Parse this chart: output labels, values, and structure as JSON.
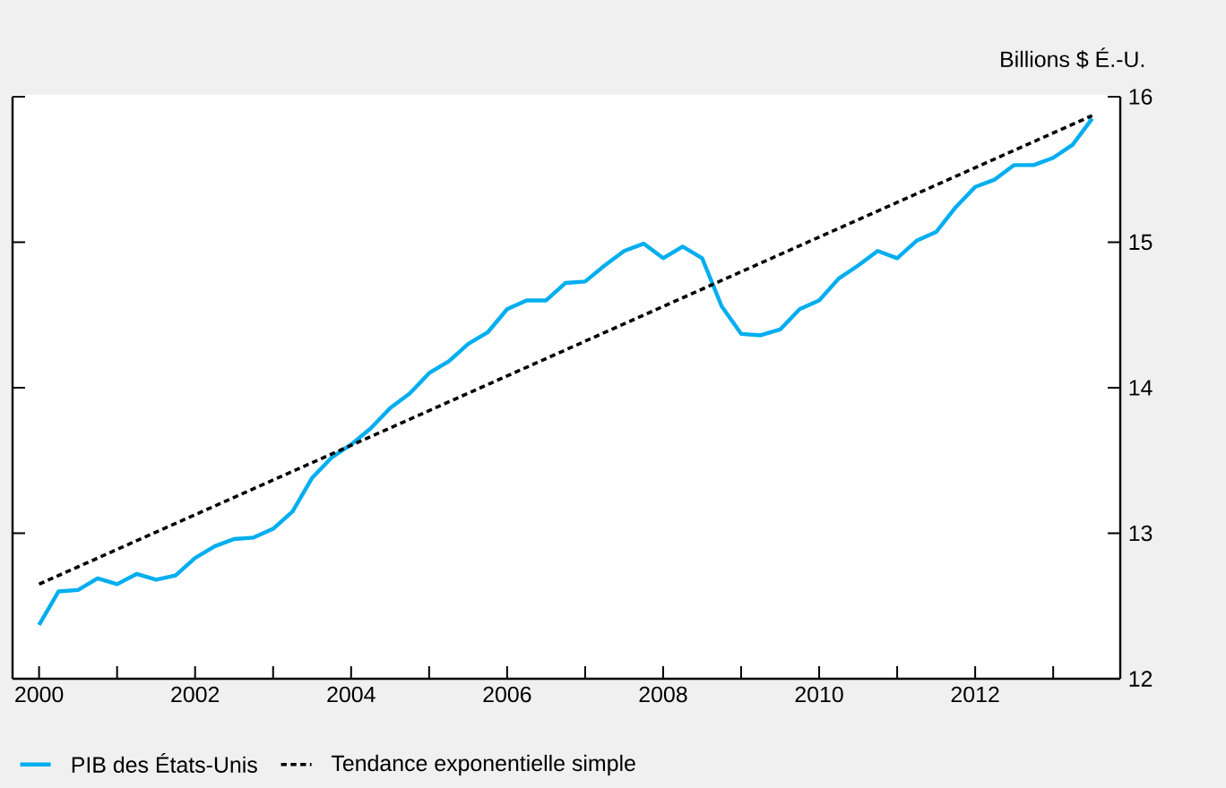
{
  "chart_data": {
    "type": "line",
    "ylabel": "Billions $ É.-U.",
    "xlim": [
      1999.66,
      2013.86
    ],
    "xticks": [
      2000,
      {
        "value": 2001,
        "label": null
      },
      2002,
      {
        "value": 2003,
        "label": null
      },
      2004,
      {
        "value": 2005,
        "label": null
      },
      2006,
      {
        "value": 2007,
        "label": null
      },
      2008,
      {
        "value": 2009,
        "label": null
      },
      2010,
      {
        "value": 2011,
        "label": null
      },
      2012,
      {
        "value": 2013,
        "label": null
      }
    ],
    "ylim": [
      12,
      16
    ],
    "yticks": [
      12,
      13,
      14,
      15,
      16
    ],
    "grid": false,
    "legend": "bottom",
    "series": [
      {
        "name": "PIB des États-Unis",
        "color": "#00aeef",
        "line_style": "solid",
        "x": [
          2000,
          2000.25,
          2000.5,
          2000.75,
          2001,
          2001.25,
          2001.5,
          2001.75,
          2002,
          2002.25,
          2002.5,
          2002.75,
          2003,
          2003.25,
          2003.5,
          2003.75,
          2004,
          2004.25,
          2004.5,
          2004.75,
          2005,
          2005.25,
          2005.5,
          2005.75,
          2006,
          2006.25,
          2006.5,
          2006.75,
          2007,
          2007.25,
          2007.5,
          2007.75,
          2008,
          2008.25,
          2008.5,
          2008.75,
          2009,
          2009.25,
          2009.5,
          2009.75,
          2010,
          2010.25,
          2010.5,
          2010.75,
          2011,
          2011.25,
          2011.5,
          2011.75,
          2012,
          2012.25,
          2012.5,
          2012.75,
          2013,
          2013.25,
          2013.5
        ],
        "values": [
          12.37,
          12.6,
          12.61,
          12.69,
          12.65,
          12.72,
          12.68,
          12.71,
          12.83,
          12.91,
          12.96,
          12.97,
          13.03,
          13.15,
          13.38,
          13.52,
          13.61,
          13.72,
          13.86,
          13.96,
          14.1,
          14.18,
          14.3,
          14.38,
          14.54,
          14.6,
          14.6,
          14.72,
          14.73,
          14.84,
          14.94,
          14.99,
          14.89,
          14.97,
          14.89,
          14.56,
          14.37,
          14.36,
          14.4,
          14.54,
          14.6,
          14.75,
          14.84,
          14.94,
          14.89,
          15.01,
          15.07,
          15.24,
          15.38,
          15.43,
          15.53,
          15.53,
          15.58,
          15.67,
          15.85
        ]
      },
      {
        "name": "Tendance exponentielle simple",
        "color": "#000000",
        "line_style": "dashed",
        "x": [
          2000,
          2013.5
        ],
        "values": [
          12.65,
          15.87
        ]
      }
    ]
  }
}
